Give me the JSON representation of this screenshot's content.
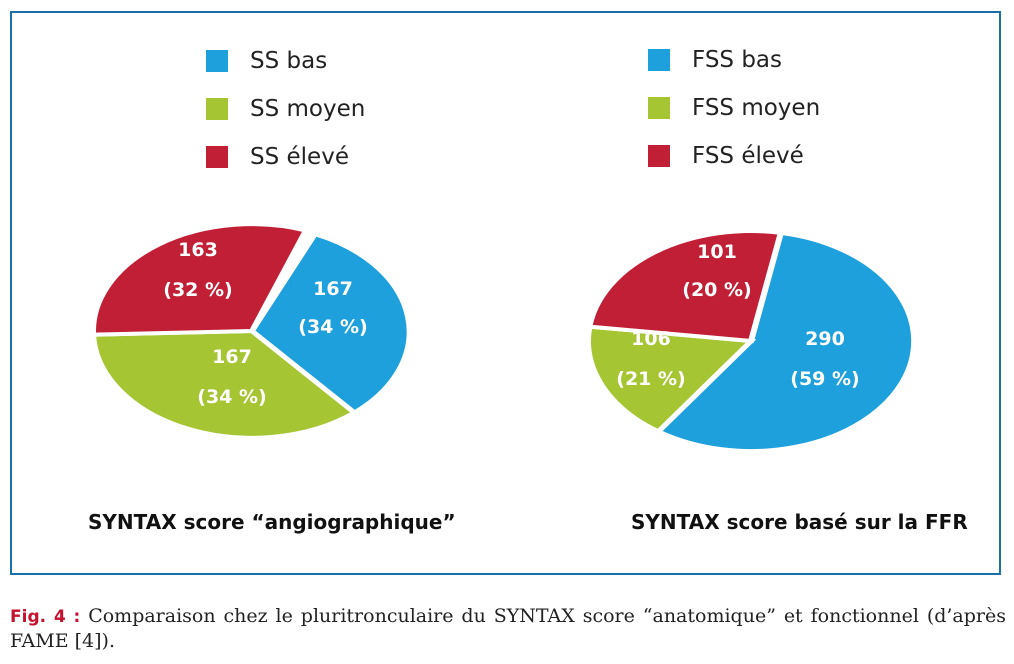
{
  "colors": {
    "frame": "#1a6fa8",
    "low": "#1ea0dc",
    "mid": "#a5c533",
    "high": "#c11f35"
  },
  "chart_data": [
    {
      "type": "pie",
      "title": "SYNTAX score “angiographique”",
      "legend": [
        "SS bas",
        "SS moyen",
        "SS élevé"
      ],
      "slices": [
        {
          "name": "SS bas",
          "value": 167,
          "value_label": "167",
          "pct_label": "(34 %)",
          "color": "#1ea0dc"
        },
        {
          "name": "SS moyen",
          "value": 167,
          "value_label": "167",
          "pct_label": "(34 %)",
          "color": "#a5c533"
        },
        {
          "name": "SS élevé",
          "value": 163,
          "value_label": "163",
          "pct_label": "(32 %)",
          "color": "#c11f35"
        }
      ]
    },
    {
      "type": "pie",
      "title": "SYNTAX score basé sur la FFR",
      "legend": [
        "FSS bas",
        "FSS moyen",
        "FSS élevé"
      ],
      "slices": [
        {
          "name": "FSS bas",
          "value": 290,
          "value_label": "290",
          "pct_label": "(59 %)",
          "color": "#1ea0dc"
        },
        {
          "name": "FSS moyen",
          "value": 106,
          "value_label": "106",
          "pct_label": "(21 %)",
          "color": "#a5c533"
        },
        {
          "name": "FSS élevé",
          "value": 101,
          "value_label": "101",
          "pct_label": "(20 %)",
          "color": "#c11f35"
        }
      ]
    }
  ],
  "caption": {
    "fig_label": "Fig. 4 :",
    "text": "Comparaison chez le pluritronculaire du SYNTAX score “anatomique” et fonctionnel (d’après FAME [4])."
  }
}
